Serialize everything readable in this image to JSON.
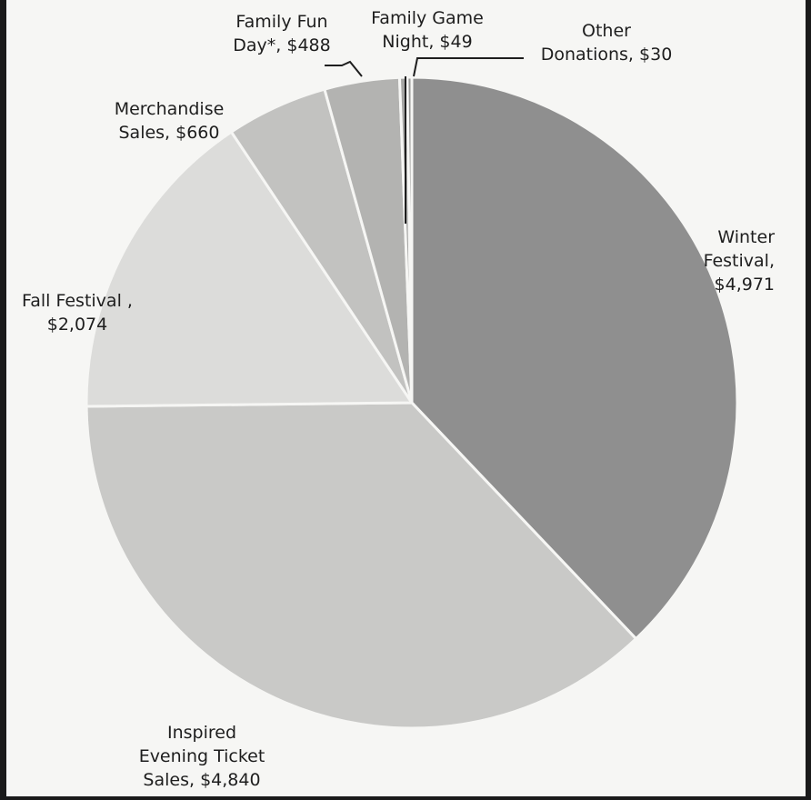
{
  "chart_data": {
    "type": "pie",
    "title": "",
    "slices": [
      {
        "label": [
          "Winter",
          "Festival,",
          "$4,971"
        ],
        "value": 4971,
        "color": "#8f8f8f"
      },
      {
        "label": [
          "Inspired",
          "Evening Ticket",
          "Sales, $4,840"
        ],
        "value": 4840,
        "color": "#c9c9c7"
      },
      {
        "label": [
          "Fall Festival ,",
          "$2,074"
        ],
        "value": 2074,
        "color": "#dcdcda"
      },
      {
        "label": [
          "Merchandise",
          "Sales, $660"
        ],
        "value": 660,
        "color": "#c2c2c0"
      },
      {
        "label": [
          "Family Fun",
          "Day*, $488"
        ],
        "value": 488,
        "color": "#b3b3b1"
      },
      {
        "label": [
          "Family Game",
          "Night, $49"
        ],
        "value": 49,
        "color": "#a6a6a4"
      },
      {
        "label": [
          "Other",
          "Donations, $30"
        ],
        "value": 30,
        "color": "#9a9a98"
      }
    ]
  }
}
